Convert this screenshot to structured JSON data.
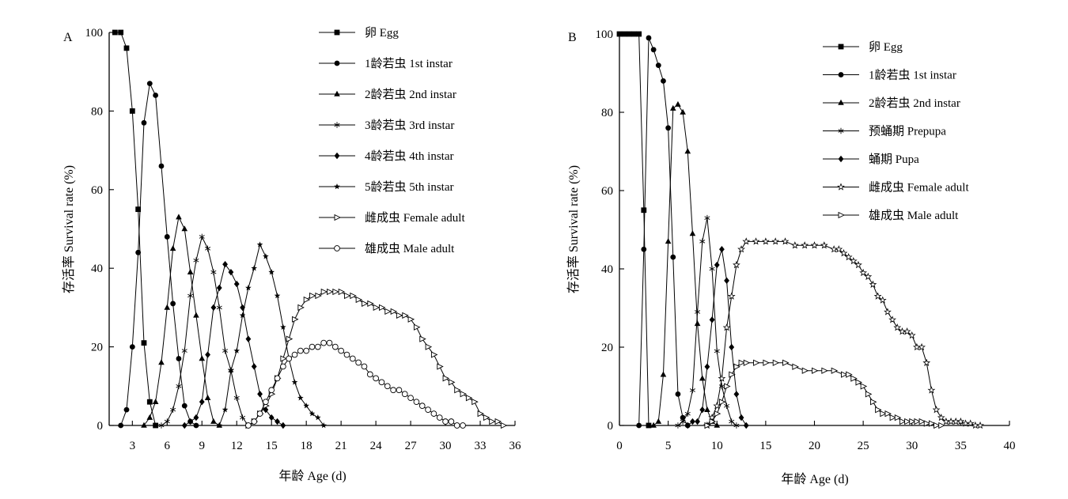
{
  "chart_data": [
    {
      "panel": "A",
      "type": "line",
      "xlabel": "年龄 Age (d)",
      "ylabel": "存活率 Survival rate (%)",
      "xlim": [
        1,
        36
      ],
      "ylim": [
        0,
        100
      ],
      "xticks": [
        3,
        6,
        9,
        12,
        15,
        18,
        21,
        24,
        27,
        30,
        33,
        36
      ],
      "yticks": [
        0,
        20,
        40,
        60,
        80,
        100
      ],
      "grid": false,
      "legend_position": "top-right",
      "series": [
        {
          "name": "卵 Egg",
          "marker": "square-filled",
          "x": [
            1.5,
            2,
            2.5,
            3,
            3.5,
            4,
            4.5,
            5
          ],
          "y": [
            100,
            100,
            96,
            80,
            55,
            21,
            6,
            0
          ]
        },
        {
          "name": "1龄若虫 1st instar",
          "marker": "circle-filled",
          "x": [
            2,
            2.5,
            3,
            3.5,
            4,
            4.5,
            5,
            5.5,
            6,
            6.5,
            7,
            7.5,
            8,
            8.5
          ],
          "y": [
            0,
            4,
            20,
            44,
            77,
            87,
            84,
            66,
            48,
            31,
            17,
            5,
            1,
            0
          ]
        },
        {
          "name": "2龄若虫 2nd instar",
          "marker": "triangle-filled",
          "x": [
            4,
            4.5,
            5,
            5.5,
            6,
            6.5,
            7,
            7.5,
            8,
            8.5,
            9,
            9.5,
            10,
            10.5
          ],
          "y": [
            0,
            2,
            6,
            16,
            30,
            45,
            53,
            50,
            39,
            28,
            17,
            7,
            1,
            0
          ]
        },
        {
          "name": "3龄若虫 3rd instar",
          "marker": "asterisk",
          "x": [
            5.5,
            6,
            6.5,
            7,
            7.5,
            8,
            8.5,
            9,
            9.5,
            10,
            10.5,
            11,
            11.5,
            12,
            12.5,
            13
          ],
          "y": [
            0,
            1,
            4,
            10,
            19,
            33,
            42,
            48,
            45,
            39,
            30,
            19,
            14,
            7,
            2,
            0
          ]
        },
        {
          "name": "4龄若虫 4th instar",
          "marker": "diamond-filled",
          "x": [
            7.5,
            8,
            8.5,
            9,
            9.5,
            10,
            10.5,
            11,
            11.5,
            12,
            12.5,
            13,
            13.5,
            14,
            14.5,
            15,
            15.5,
            16
          ],
          "y": [
            0,
            1,
            2,
            6,
            18,
            30,
            35,
            41,
            39,
            36,
            30,
            22,
            15,
            8,
            4,
            2,
            1,
            0
          ]
        },
        {
          "name": "5龄若虫 5th instar",
          "marker": "star-filled",
          "x": [
            10.5,
            11,
            11.5,
            12,
            12.5,
            13,
            13.5,
            14,
            14.5,
            15,
            15.5,
            16,
            16.5,
            17,
            17.5,
            18,
            18.5,
            19,
            19.5
          ],
          "y": [
            0,
            4,
            14,
            19,
            28,
            35,
            40,
            46,
            43,
            39,
            33,
            25,
            17,
            11,
            7,
            5,
            3,
            2,
            0
          ]
        },
        {
          "name": "雌成虫 Female adult",
          "marker": "triangle-right-open",
          "x": [
            13,
            13.5,
            14,
            14.5,
            15,
            15.5,
            16,
            16.5,
            17,
            17.5,
            18,
            18.5,
            19,
            19.5,
            20,
            20.5,
            21,
            21.5,
            22,
            22.5,
            23,
            23.5,
            24,
            24.5,
            25,
            25.5,
            26,
            26.5,
            27,
            27.5,
            28,
            28.5,
            29,
            29.5,
            30,
            30.5,
            31,
            31.5,
            32,
            32.5,
            33,
            33.5,
            34,
            34.5,
            35
          ],
          "y": [
            0,
            1,
            3,
            5,
            8,
            12,
            17,
            22,
            27,
            30,
            32,
            33,
            33,
            34,
            34,
            34,
            34,
            33,
            33,
            32,
            31,
            31,
            30,
            30,
            29,
            29,
            28,
            28,
            27,
            25,
            22,
            20,
            18,
            15,
            12,
            11,
            9,
            8,
            7,
            6,
            3,
            2,
            1,
            1,
            0
          ]
        },
        {
          "name": "雄成虫 Male adult",
          "marker": "circle-open",
          "x": [
            13,
            13.5,
            14,
            14.5,
            15,
            15.5,
            16,
            16.5,
            17,
            17.5,
            18,
            18.5,
            19,
            19.5,
            20,
            20.5,
            21,
            21.5,
            22,
            22.5,
            23,
            23.5,
            24,
            24.5,
            25,
            25.5,
            26,
            26.5,
            27,
            27.5,
            28,
            28.5,
            29,
            29.5,
            30,
            30.5,
            31,
            31.5
          ],
          "y": [
            0,
            1,
            3,
            6,
            9,
            12,
            15,
            17,
            18,
            19,
            19,
            20,
            20,
            21,
            21,
            20,
            19,
            18,
            17,
            16,
            15,
            13,
            12,
            11,
            10,
            9,
            9,
            8,
            7,
            6,
            5,
            4,
            3,
            2,
            1,
            1,
            0,
            0
          ]
        }
      ]
    },
    {
      "panel": "B",
      "type": "line",
      "xlabel": "年龄 Age (d)",
      "ylabel": "存活率 Survival rate (%)",
      "xlim": [
        0,
        40
      ],
      "ylim": [
        0,
        100
      ],
      "xticks": [
        0,
        5,
        10,
        15,
        20,
        25,
        30,
        35,
        40
      ],
      "yticks": [
        0,
        20,
        40,
        60,
        80,
        100
      ],
      "grid": false,
      "legend_position": "top-right",
      "series": [
        {
          "name": "卵 Egg",
          "marker": "square-filled",
          "x": [
            0,
            0.5,
            1,
            1.5,
            2,
            2.5,
            3
          ],
          "y": [
            100,
            100,
            100,
            100,
            100,
            55,
            0
          ]
        },
        {
          "name": "1龄若虫 1st instar",
          "marker": "circle-filled",
          "x": [
            2,
            2.5,
            3,
            3.5,
            4,
            4.5,
            5,
            5.5,
            6,
            6.5,
            7
          ],
          "y": [
            0,
            45,
            99,
            96,
            92,
            88,
            76,
            43,
            8,
            2,
            0
          ]
        },
        {
          "name": "2龄若虫 2nd instar",
          "marker": "triangle-filled",
          "x": [
            3.5,
            4,
            4.5,
            5,
            5.5,
            6,
            6.5,
            7,
            7.5,
            8,
            8.5,
            9,
            9.5,
            10
          ],
          "y": [
            0,
            1,
            13,
            47,
            81,
            82,
            80,
            70,
            49,
            26,
            12,
            4,
            1,
            0
          ]
        },
        {
          "name": "预蛹期 Prepupa",
          "marker": "asterisk",
          "x": [
            6,
            6.5,
            7,
            7.5,
            8,
            8.5,
            9,
            9.5,
            10,
            10.5,
            11,
            11.5,
            12
          ],
          "y": [
            0,
            1,
            3,
            9,
            29,
            47,
            53,
            40,
            19,
            10,
            5,
            1,
            0
          ]
        },
        {
          "name": "蛹期 Pupa",
          "marker": "diamond-filled",
          "x": [
            7,
            7.5,
            8,
            8.5,
            9,
            9.5,
            10,
            10.5,
            11,
            11.5,
            12,
            12.5,
            13
          ],
          "y": [
            0,
            1,
            1,
            4,
            15,
            27,
            41,
            45,
            37,
            20,
            8,
            2,
            0
          ]
        },
        {
          "name": "雌成虫 Female adult",
          "marker": "star-open",
          "x": [
            9,
            9.5,
            10,
            10.5,
            11,
            11.5,
            12,
            12.5,
            13,
            14,
            15,
            16,
            17,
            18,
            19,
            20,
            21,
            22,
            22.5,
            23,
            23.5,
            24,
            24.5,
            25,
            25.5,
            26,
            26.5,
            27,
            27.5,
            28,
            28.5,
            29,
            29.5,
            30,
            30.5,
            31,
            31.5,
            32,
            32.5,
            33,
            33.5,
            34,
            34.5,
            35,
            35.5,
            36,
            36.5,
            37
          ],
          "y": [
            0,
            2,
            5,
            12,
            25,
            33,
            41,
            45,
            47,
            47,
            47,
            47,
            47,
            46,
            46,
            46,
            46,
            45,
            45,
            44,
            43,
            42,
            41,
            39,
            38,
            36,
            33,
            32,
            29,
            27,
            25,
            24,
            24,
            23,
            20,
            20,
            16,
            9,
            4,
            2,
            1,
            1,
            1,
            1,
            0.5,
            0.5,
            0,
            0
          ]
        },
        {
          "name": "雄成虫 Male adult",
          "marker": "triangle-right-open",
          "x": [
            9,
            9.5,
            10,
            10.5,
            11,
            11.5,
            12,
            12.5,
            13,
            14,
            15,
            16,
            17,
            18,
            19,
            20,
            21,
            22,
            23,
            23.5,
            24,
            24.5,
            25,
            25.5,
            26,
            26.5,
            27,
            27.5,
            28,
            28.5,
            29,
            29.5,
            30,
            30.5,
            31,
            31.5,
            32,
            32.5,
            33
          ],
          "y": [
            0,
            1,
            3,
            6,
            10,
            13,
            15,
            16,
            16,
            16,
            16,
            16,
            16,
            15,
            14,
            14,
            14,
            14,
            13,
            13,
            12,
            11,
            10,
            8,
            6,
            4,
            3,
            3,
            2,
            2,
            1,
            1,
            1,
            1,
            1,
            0.5,
            0.5,
            0,
            0
          ]
        }
      ]
    }
  ]
}
